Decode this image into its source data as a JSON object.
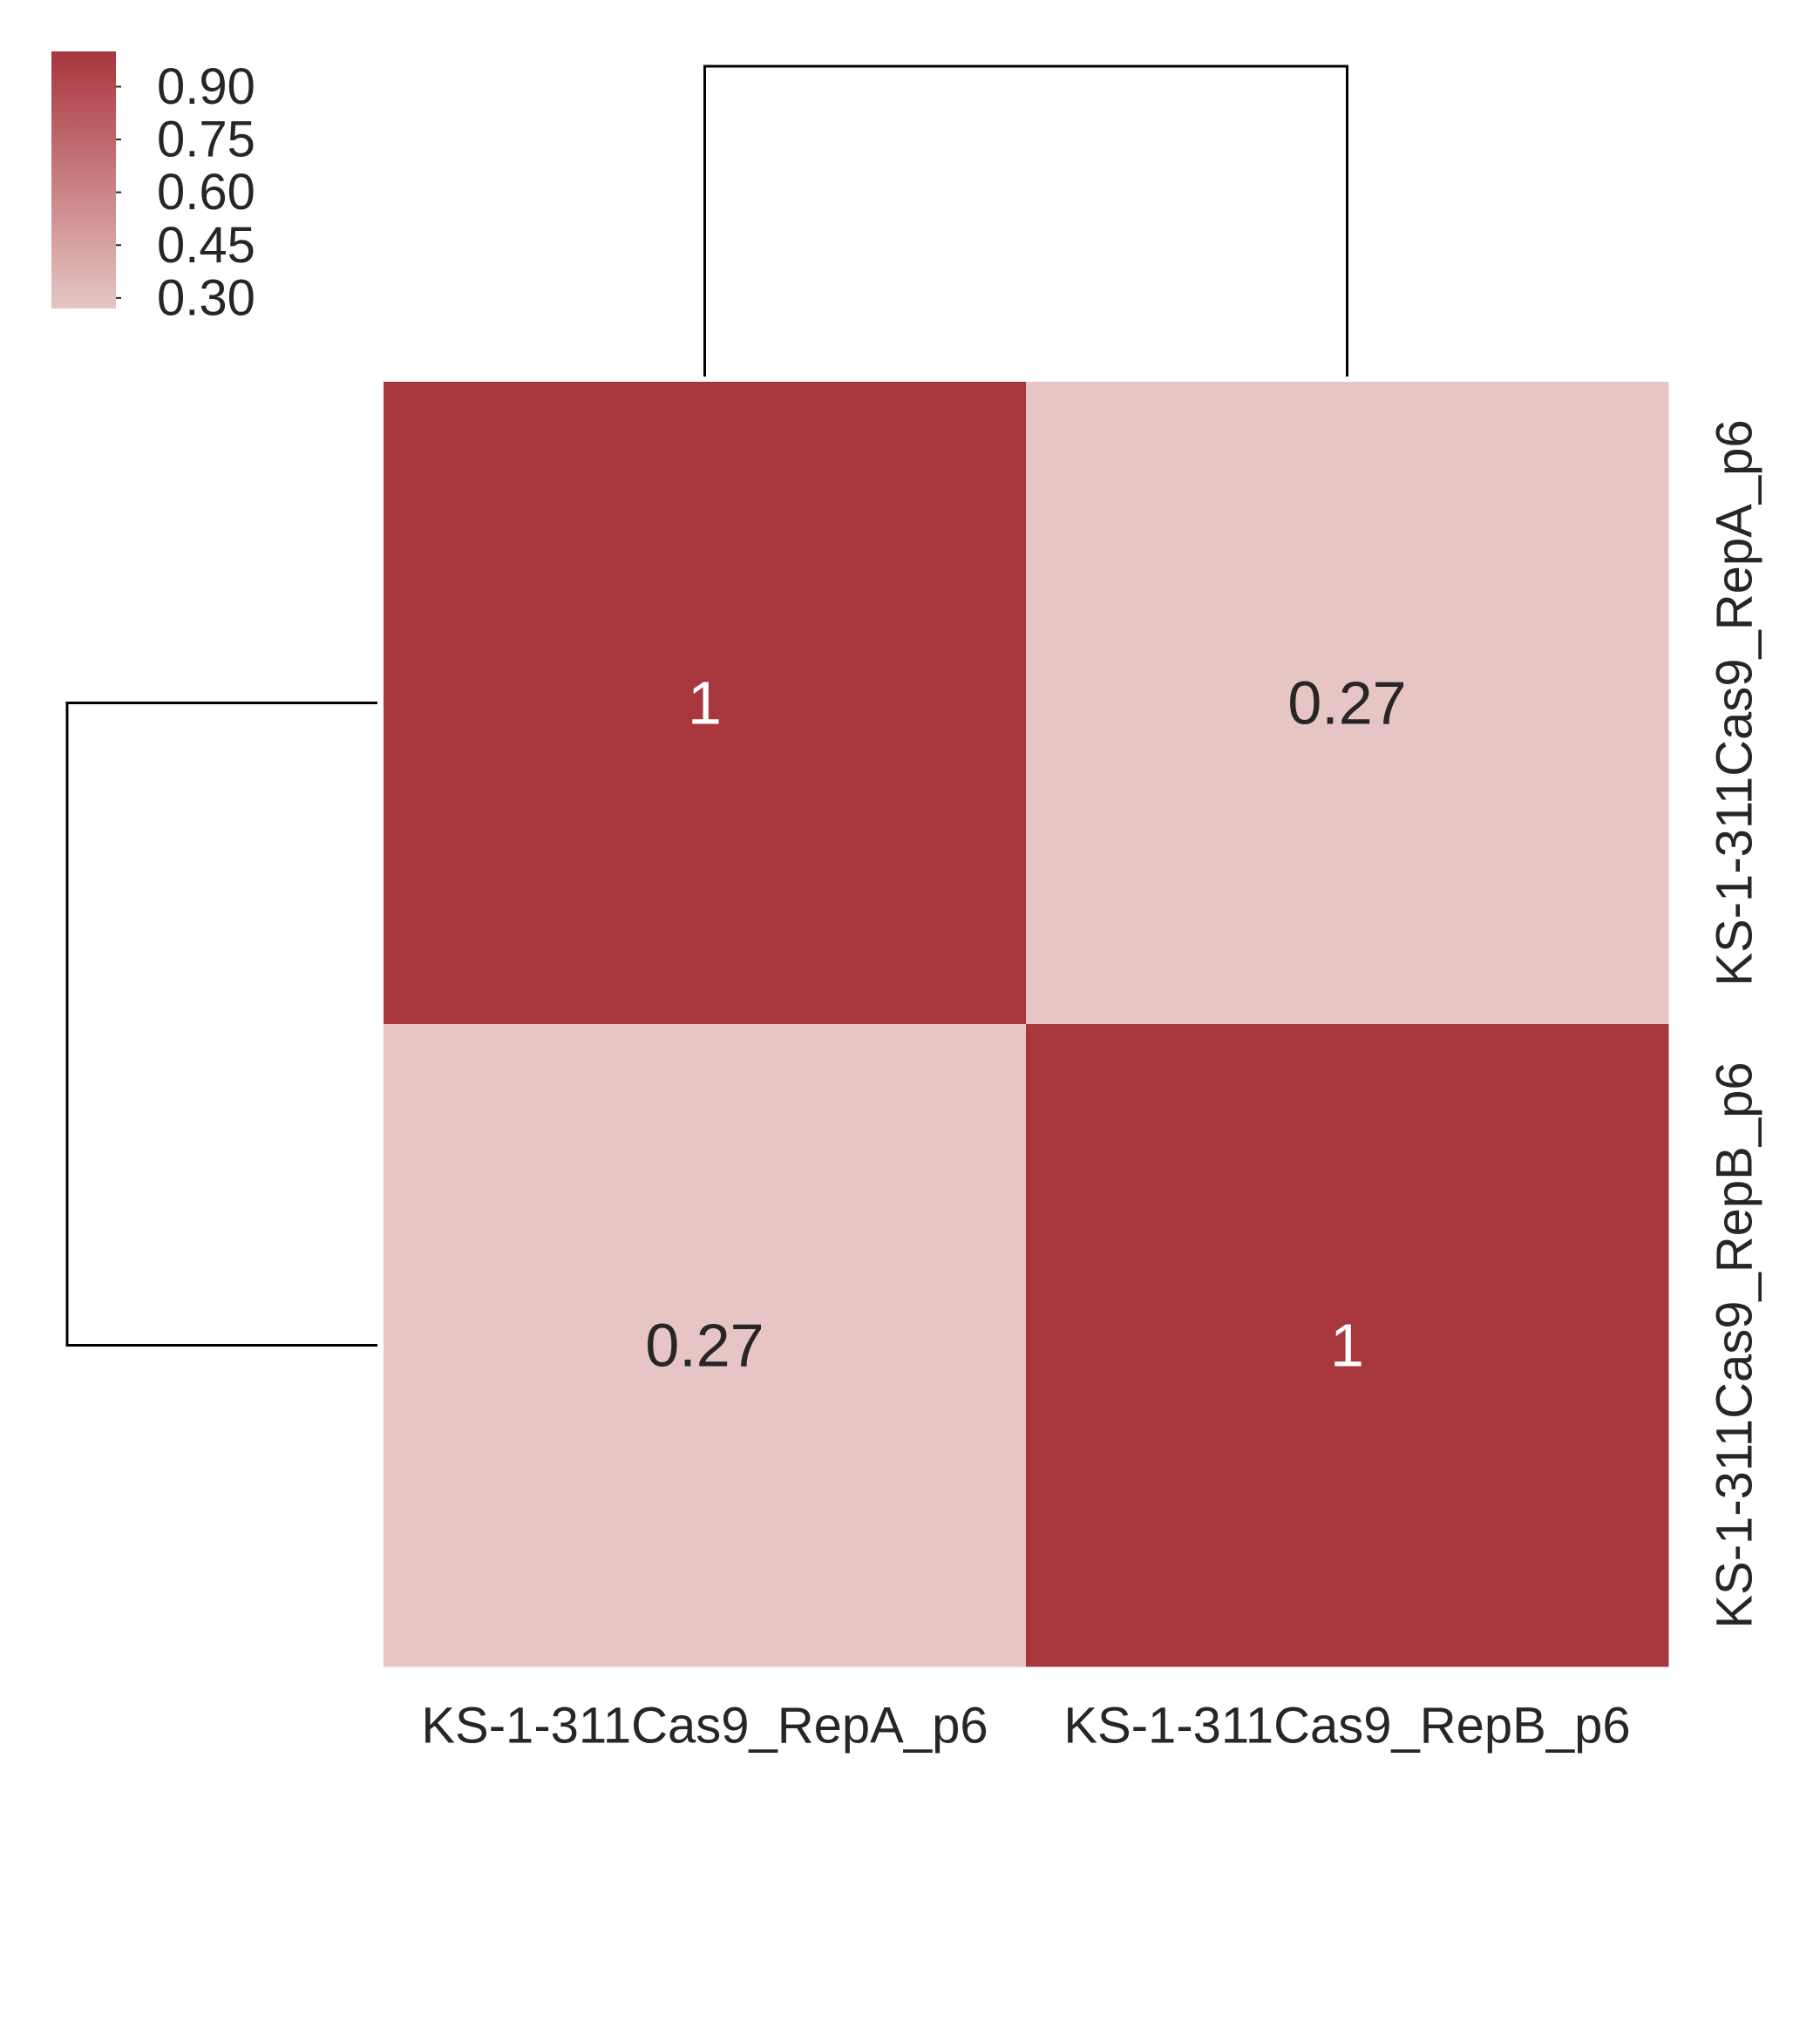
{
  "chart_data": {
    "type": "heatmap",
    "title": "",
    "xlabel": "",
    "ylabel": "",
    "rows": [
      "KS-1-311Cas9_RepA_p6",
      "KS-1-311Cas9_RepB_p6"
    ],
    "columns": [
      "KS-1-311Cas9_RepA_p6",
      "KS-1-311Cas9_RepB_p6"
    ],
    "values": [
      [
        1,
        0.27
      ],
      [
        0.27,
        1
      ]
    ],
    "annotations": [
      [
        "1",
        "0.27"
      ],
      [
        "0.27",
        "1"
      ]
    ],
    "colorbar": {
      "ticks": [
        "0.90",
        "0.75",
        "0.60",
        "0.45",
        "0.30"
      ],
      "tick_values": [
        0.9,
        0.75,
        0.6,
        0.45,
        0.3
      ],
      "range": [
        0.27,
        1.0
      ],
      "color_low": "#e6c5c4",
      "color_high": "#a8363d",
      "placement": "top-left"
    },
    "dendrogram": {
      "columns": "top",
      "rows": "left",
      "line_color": "#000000"
    },
    "colors": {
      "annotation_on_dark": "#ffffff",
      "annotation_on_light": "#262626",
      "label": "#262626"
    }
  }
}
